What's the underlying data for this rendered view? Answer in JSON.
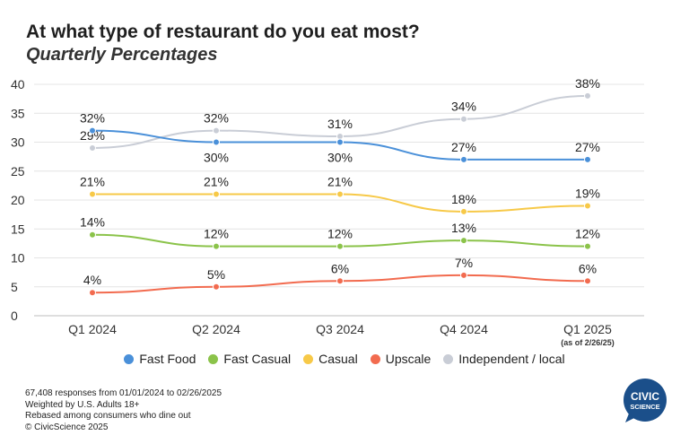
{
  "title": "At what type of restaurant do you eat most?",
  "subtitle": "Quarterly Percentages",
  "chart_data": {
    "type": "line",
    "categories": [
      "Q1 2024",
      "Q2 2024",
      "Q3 2024",
      "Q4 2024",
      "Q1 2025"
    ],
    "category_note": "(as of 2/26/25)",
    "ylim": [
      0,
      40
    ],
    "yticks": [
      0,
      5,
      10,
      15,
      20,
      25,
      30,
      35,
      40
    ],
    "grid": true,
    "legend_position": "bottom",
    "value_suffix": "%",
    "series": [
      {
        "name": "Fast Food",
        "color": "#4a90d9",
        "values": [
          32,
          30,
          30,
          27,
          27
        ],
        "label_pos": [
          "above",
          "below",
          "below",
          "above",
          "above"
        ]
      },
      {
        "name": "Fast Casual",
        "color": "#8bc34a",
        "values": [
          14,
          12,
          12,
          13,
          12
        ],
        "label_pos": [
          "above",
          "above",
          "above",
          "above",
          "above"
        ]
      },
      {
        "name": "Casual",
        "color": "#f7c948",
        "values": [
          21,
          21,
          21,
          18,
          19
        ],
        "label_pos": [
          "above",
          "above",
          "above",
          "above",
          "above"
        ]
      },
      {
        "name": "Upscale",
        "color": "#f26b4f",
        "values": [
          4,
          5,
          6,
          7,
          6
        ],
        "label_pos": [
          "above",
          "above",
          "above",
          "above",
          "above"
        ]
      },
      {
        "name": "Independent / local",
        "color": "#c9cdd6",
        "values": [
          29,
          32,
          31,
          34,
          38
        ],
        "label_pos": [
          "above",
          "above",
          "above",
          "above",
          "above"
        ]
      }
    ]
  },
  "footer": {
    "line1": "67,408 responses from 01/01/2024 to 02/26/2025",
    "line2": "Weighted by U.S. Adults 18+",
    "line3": "Rebased among consumers who dine out",
    "line4": "© CivicScience 2025"
  },
  "logo": {
    "line1": "CIVIC",
    "line2": "SCIENCE",
    "color": "#1b4f8a"
  }
}
